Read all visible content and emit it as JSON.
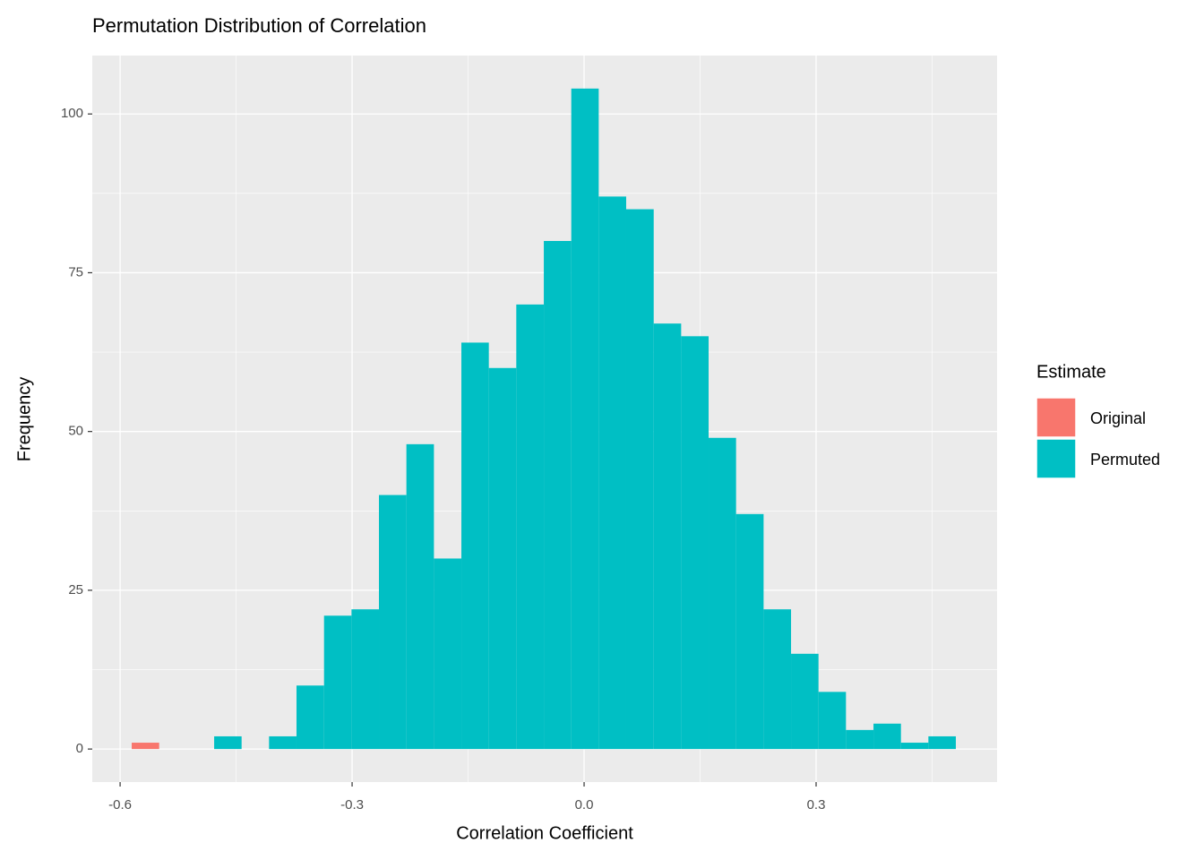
{
  "chart_data": {
    "type": "histogram",
    "title": "Permutation Distribution of Correlation",
    "x_label": "Correlation Coefficient",
    "y_label": "Frequency",
    "legend_title": "Estimate",
    "legend_position": "right",
    "bins": [
      -0.585,
      -0.5495,
      -0.514,
      -0.4784,
      -0.4429,
      -0.4074,
      -0.3719,
      -0.3363,
      -0.3008,
      -0.2653,
      -0.2298,
      -0.1942,
      -0.1587,
      -0.1232,
      -0.0877,
      -0.0521,
      -0.0166,
      0.0189,
      0.0544,
      0.09,
      0.1255,
      0.161,
      0.1965,
      0.2321,
      0.2676,
      0.3031,
      0.3386,
      0.3742,
      0.4097,
      0.4452,
      0.4807
    ],
    "series": [
      {
        "name": "Original",
        "color": "#f8766d",
        "values": [
          1,
          0,
          0,
          0,
          0,
          0,
          0,
          0,
          0,
          0,
          0,
          0,
          0,
          0,
          0,
          0,
          0,
          0,
          0,
          0,
          0,
          0,
          0,
          0,
          0,
          0,
          0,
          0,
          0,
          0
        ]
      },
      {
        "name": "Permuted",
        "color": "#00bfc4",
        "values": [
          0,
          0,
          0,
          2,
          0,
          2,
          10,
          21,
          22,
          40,
          48,
          30,
          64,
          60,
          70,
          80,
          104,
          87,
          85,
          67,
          65,
          49,
          37,
          22,
          15,
          9,
          3,
          4,
          1,
          2
        ]
      }
    ],
    "xlim": [
      -0.636,
      0.534
    ],
    "xticks": [
      -0.6,
      -0.3,
      {
        "value": 0,
        "label": "0.0"
      },
      0.3
    ],
    "ylim": [
      -5.2,
      109.2
    ],
    "yticks": [
      0,
      25,
      50,
      75,
      100
    ],
    "grid": true
  }
}
